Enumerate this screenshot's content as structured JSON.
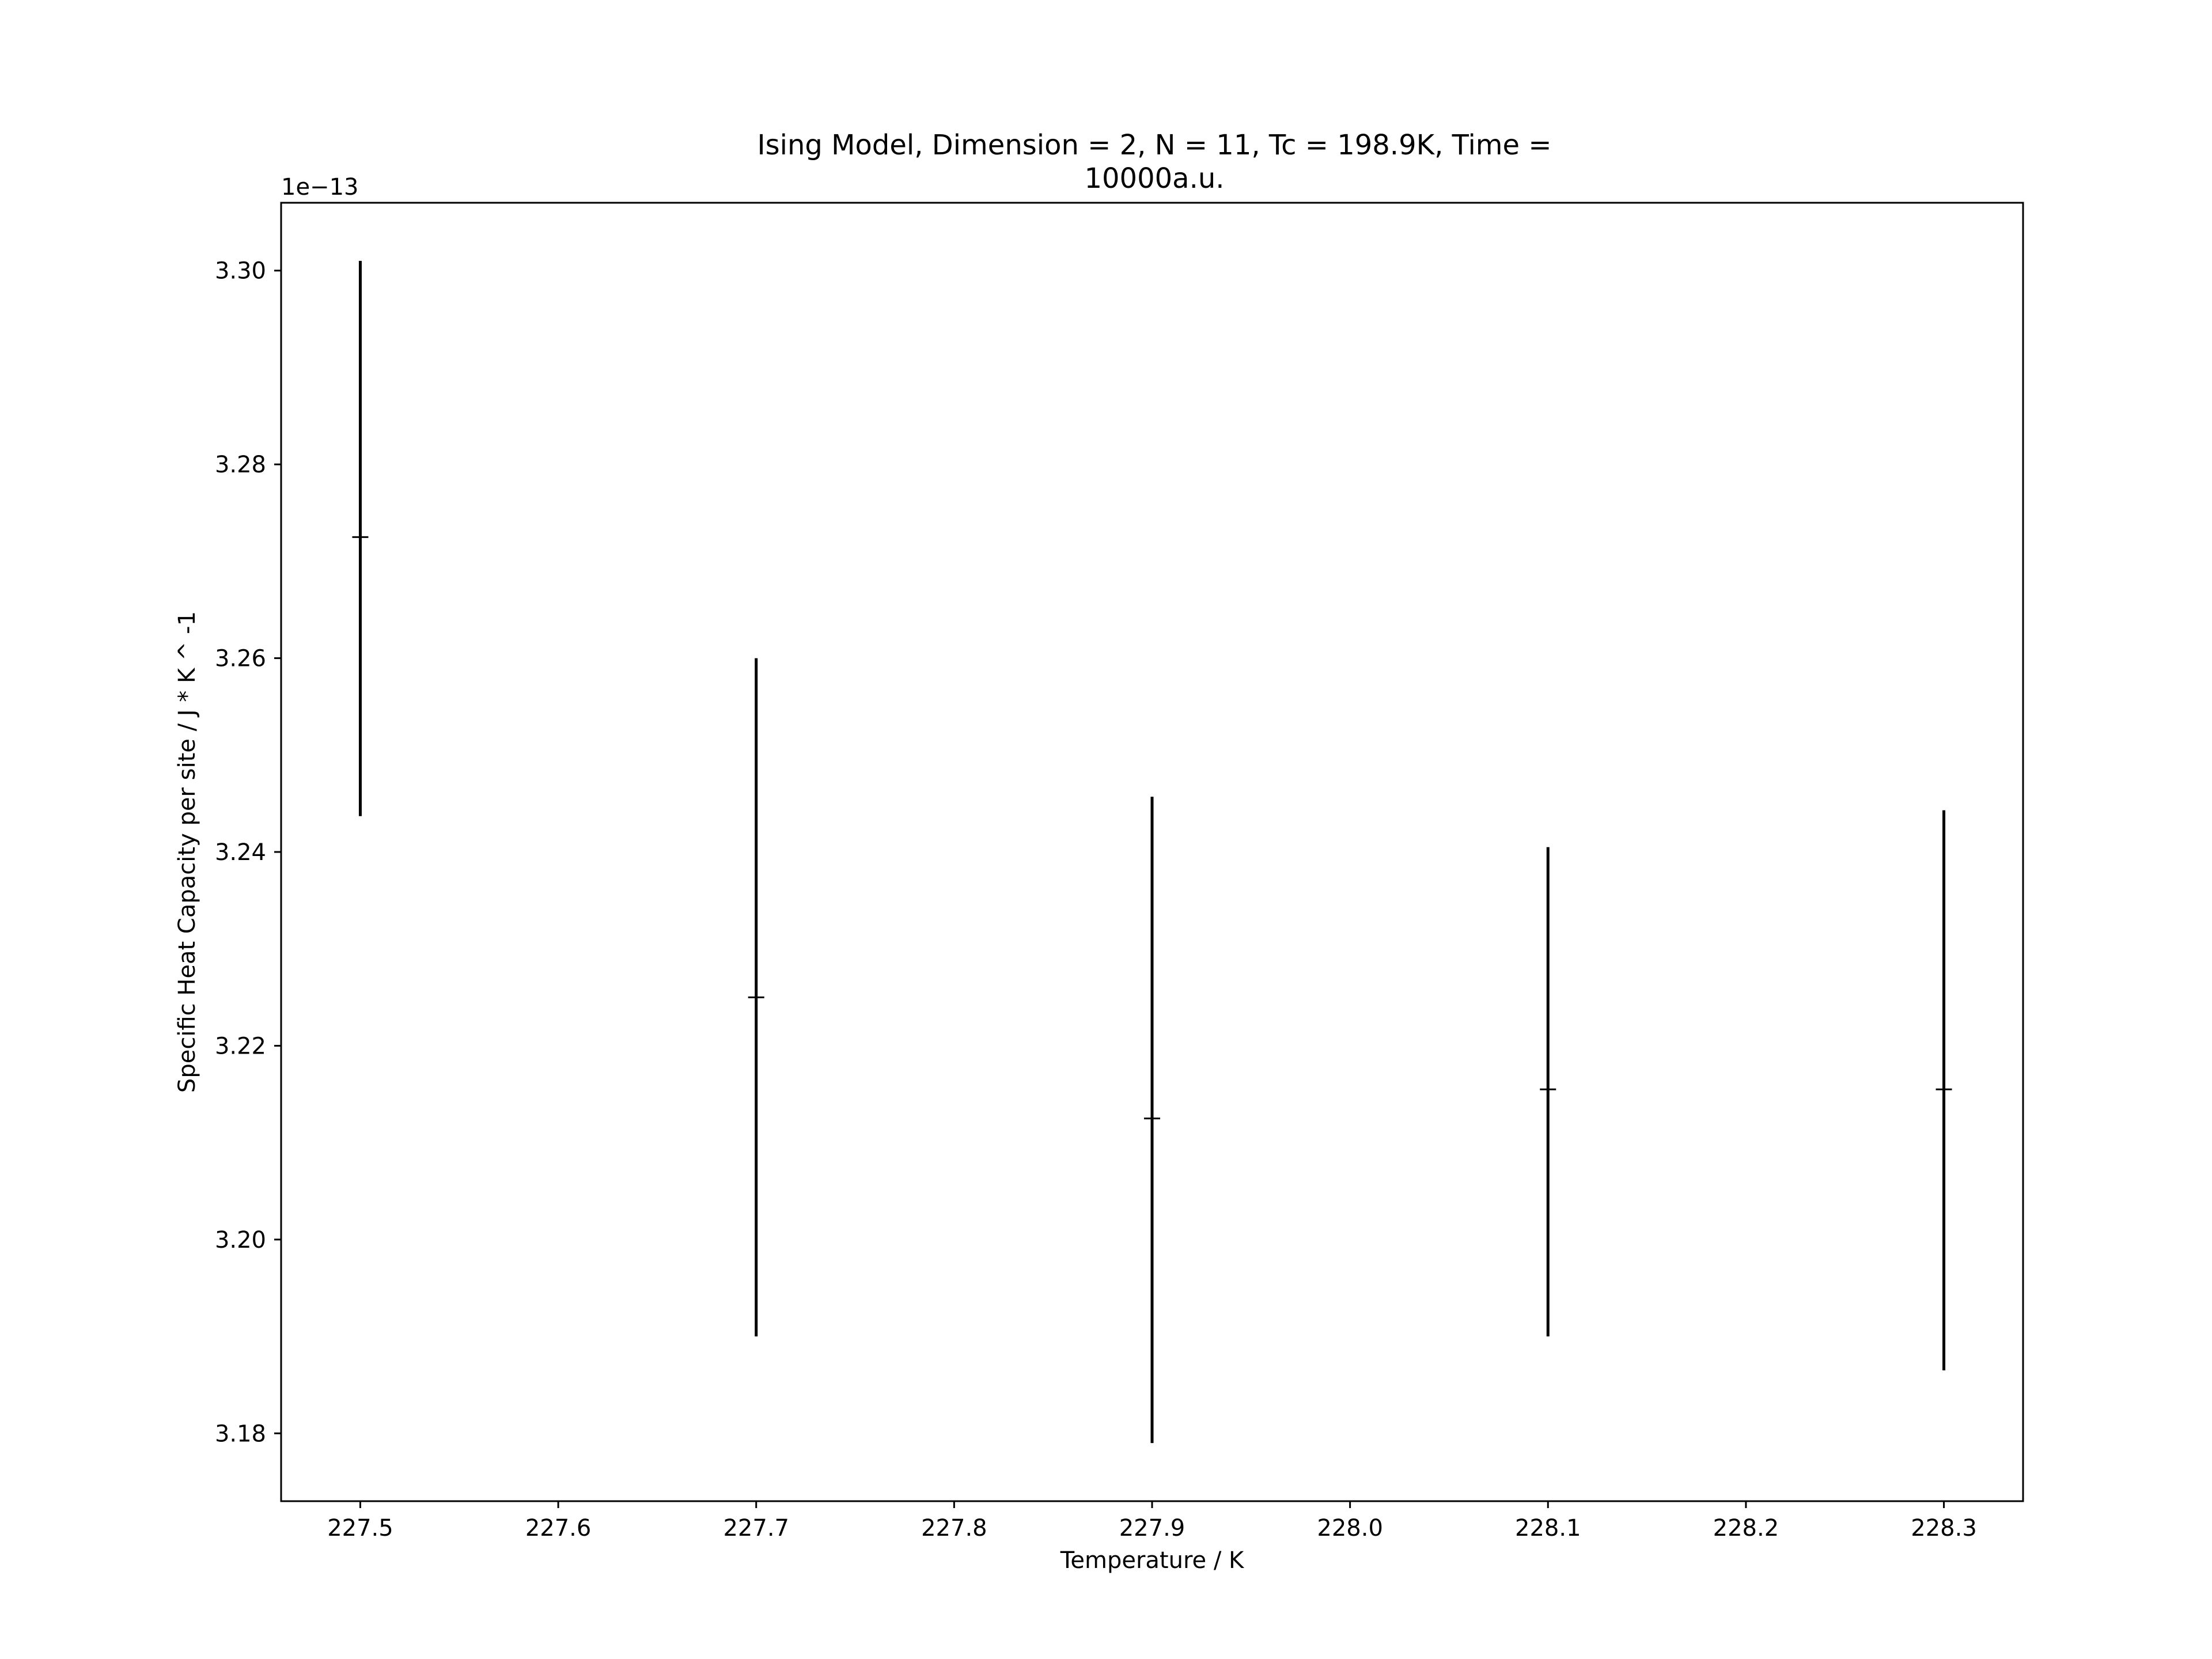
{
  "chart_data": {
    "type": "scatter",
    "title_lines": [
      "Ising Model, Dimension = 2, N = 11, Tc = 198.9K, Time =",
      "10000a.u."
    ],
    "xlabel": "Temperature / K",
    "ylabel": "Specific Heat Capacity per site / J * K ^ -1",
    "y_offset_label": "1e−13",
    "xlim": [
      227.46,
      228.34
    ],
    "ylim": [
      3.173,
      3.307
    ],
    "x_ticks": [
      227.5,
      227.6,
      227.7,
      227.8,
      227.9,
      228.0,
      228.1,
      228.2,
      228.3
    ],
    "x_tick_labels": [
      "227.5",
      "227.6",
      "227.7",
      "227.8",
      "227.9",
      "228.0",
      "228.1",
      "228.2",
      "228.3"
    ],
    "y_ticks": [
      3.18,
      3.2,
      3.22,
      3.24,
      3.26,
      3.28,
      3.3
    ],
    "y_tick_labels": [
      "3.18",
      "3.20",
      "3.22",
      "3.24",
      "3.26",
      "3.28",
      "3.30"
    ],
    "grid": false,
    "series": [
      {
        "x": [
          227.5,
          227.7,
          227.9,
          228.1,
          228.3
        ],
        "y": [
          3.2725,
          3.225,
          3.2125,
          3.2155,
          3.2155
        ],
        "y_low": [
          3.2437,
          3.19,
          3.179,
          3.19,
          3.1865
        ],
        "y_high": [
          3.301,
          3.26,
          3.2457,
          3.2405,
          3.2443
        ],
        "color": "#000000"
      }
    ]
  }
}
